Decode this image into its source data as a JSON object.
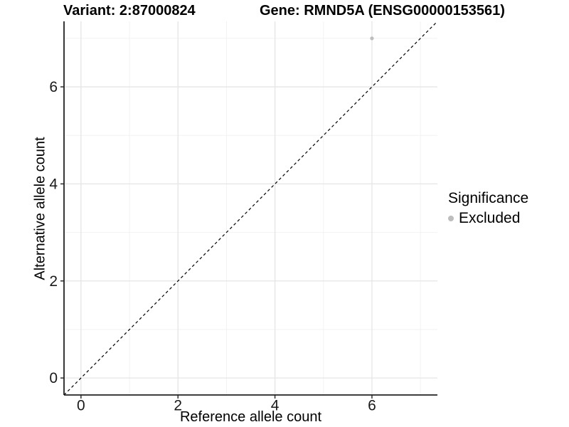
{
  "chart_data": {
    "type": "scatter",
    "title_variant": "Variant: 2:87000824",
    "title_gene": "Gene: RMND5A (ENSG00000153561)",
    "xlabel": "Reference allele count",
    "ylabel": "Alternative allele count",
    "xlim": [
      -0.35,
      7.35
    ],
    "ylim": [
      -0.35,
      7.35
    ],
    "xticks": [
      0,
      2,
      4,
      6
    ],
    "yticks": [
      0,
      2,
      4,
      6
    ],
    "minor_xticks": [
      1,
      3,
      5,
      7
    ],
    "minor_yticks": [
      1,
      3,
      5,
      7
    ],
    "grid": true,
    "series": [
      {
        "name": "Excluded",
        "color": "#bdbdbd",
        "points": [
          {
            "x": 6,
            "y": 7
          }
        ]
      }
    ],
    "reference_line": {
      "style": "dashed",
      "slope": 1,
      "intercept": 0,
      "color": "#000000"
    },
    "legend": {
      "position": "right",
      "title": "Significance",
      "items": [
        {
          "label": "Excluded",
          "color": "#bdbdbd",
          "marker": "point"
        }
      ]
    },
    "colors": {
      "axis": "#222222",
      "grid_major": "#e5e5e5",
      "grid_minor": "#f2f2f2",
      "tick_text": "#1a1a1a"
    }
  }
}
